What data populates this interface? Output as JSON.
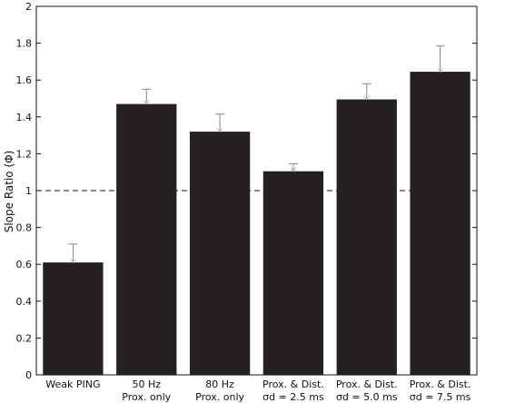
{
  "chart_data": {
    "type": "bar",
    "title": "",
    "ylabel": "Slope Ratio (Φ)",
    "xlabel": "",
    "ylim": [
      0,
      2
    ],
    "yticks": [
      0,
      0.2,
      0.4,
      0.6,
      0.8,
      1,
      1.2,
      1.4,
      1.6,
      1.8,
      2
    ],
    "ytick_labels": [
      "0",
      "0.2",
      "0.4",
      "0.6",
      "0.8",
      "1",
      "1.2",
      "1.4",
      "1.6",
      "1.8",
      "2"
    ],
    "reference_line": 1.0,
    "bar_color": "#262121",
    "categories": [
      {
        "line1": "Weak PING",
        "line2": ""
      },
      {
        "line1": "50 Hz",
        "line2": "Prox. only"
      },
      {
        "line1": "80 Hz",
        "line2": "Prox. only"
      },
      {
        "line1": "Prox. & Dist.",
        "line2": "σd = 2.5 ms"
      },
      {
        "line1": "Prox. & Dist.",
        "line2": "σd = 5.0 ms"
      },
      {
        "line1": "Prox. & Dist.",
        "line2": "σd = 7.5 ms"
      }
    ],
    "values": [
      0.61,
      1.47,
      1.32,
      1.105,
      1.495,
      1.645
    ],
    "errors": [
      0.1,
      0.08,
      0.095,
      0.04,
      0.085,
      0.14
    ]
  }
}
